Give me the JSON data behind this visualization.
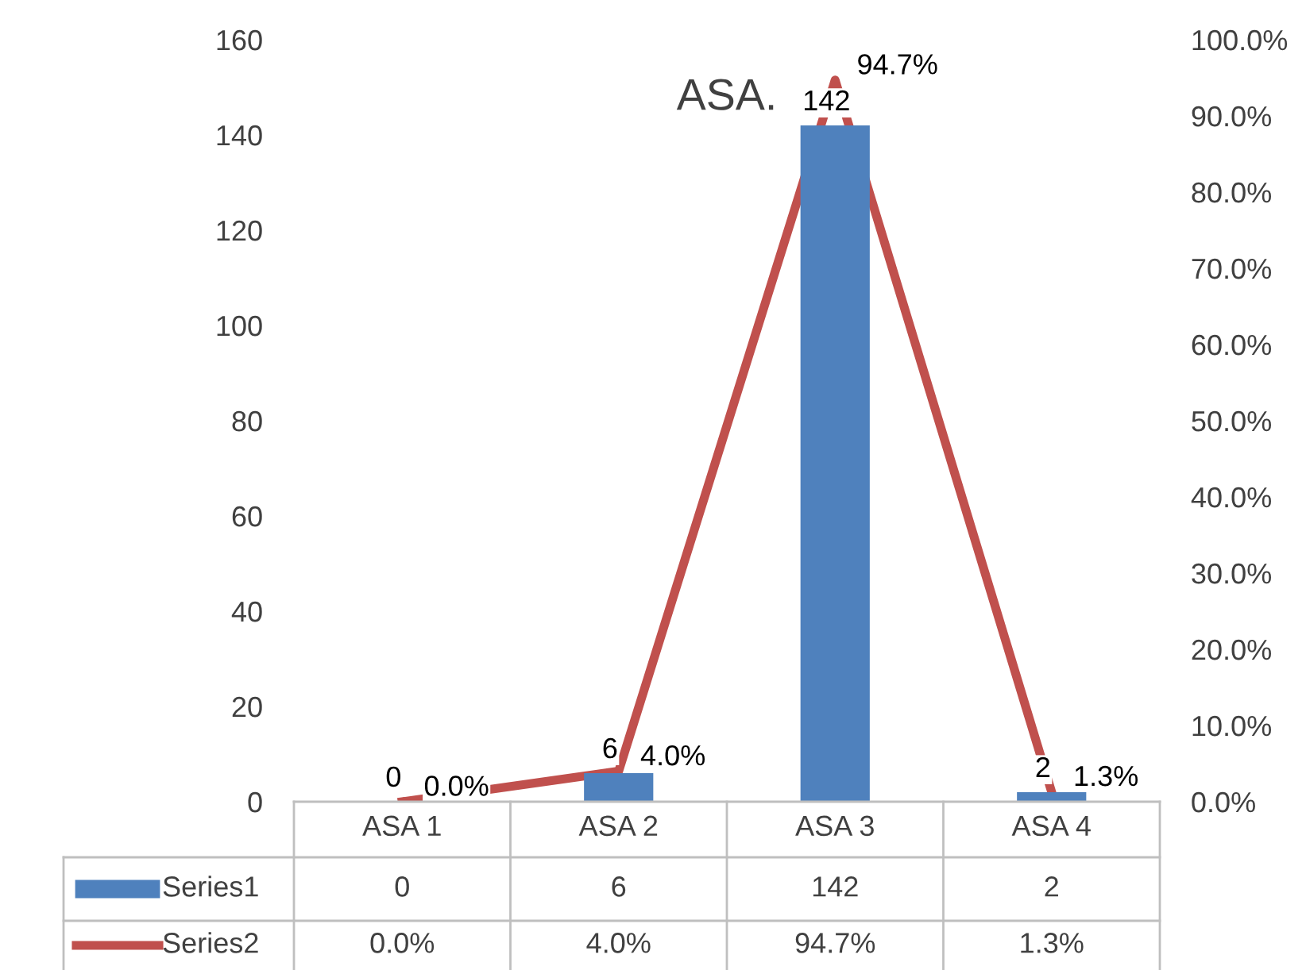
{
  "chart_data": {
    "type": "bar",
    "title": "ASA.",
    "categories": [
      "ASA 1",
      "ASA 2",
      "ASA 3",
      "ASA 4"
    ],
    "series": [
      {
        "name": "Series1",
        "color": "#4f81bd",
        "values": [
          0,
          6,
          142,
          2
        ],
        "value_labels": [
          "0",
          "6",
          "142",
          "2"
        ]
      },
      {
        "name": "Series2",
        "type": "line",
        "axis": "y2",
        "color": "#c0504d",
        "values": [
          0.0,
          4.0,
          94.7,
          1.3
        ],
        "value_labels": [
          "0.0%",
          "4.0%",
          "94.7%",
          "1.3%"
        ]
      }
    ],
    "ylim": [
      0,
      160
    ],
    "yticks": [
      0,
      20,
      40,
      60,
      80,
      100,
      120,
      140,
      160
    ],
    "y2lim": [
      0,
      100
    ],
    "y2ticks": [
      {
        "value": 0,
        "label": "0.0%"
      },
      {
        "value": 10,
        "label": "10.0%"
      },
      {
        "value": 20,
        "label": "20.0%"
      },
      {
        "value": 30,
        "label": "30.0%"
      },
      {
        "value": 40,
        "label": "40.0%"
      },
      {
        "value": 50,
        "label": "50.0%"
      },
      {
        "value": 60,
        "label": "60.0%"
      },
      {
        "value": 70,
        "label": "70.0%"
      },
      {
        "value": 80,
        "label": "80.0%"
      },
      {
        "value": 90,
        "label": "90.0%"
      },
      {
        "value": 100,
        "label": "100.0%"
      }
    ],
    "grid": false,
    "legend": "bottom",
    "marker": "none",
    "line_style": "solid"
  }
}
